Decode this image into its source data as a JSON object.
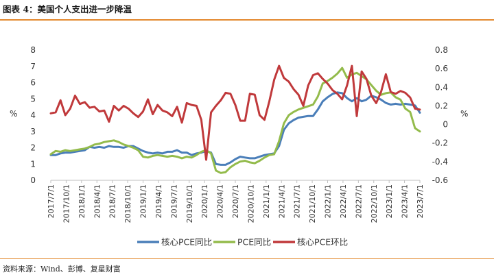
{
  "title": "图表 4：美国个人支出进一步降温",
  "source": "资料来源：Wind、彭博、复星财富",
  "colors": {
    "core_pce_yoy": "#4a7eb9",
    "pce_yoy": "#93bb4b",
    "core_pce_mom": "#c0393b",
    "rule": "#e3892f"
  },
  "chart_data": {
    "type": "line",
    "x_ticks": [
      "2017/7/1",
      "2017/10/1",
      "2018/1/1",
      "2018/4/1",
      "2018/7/1",
      "2018/10/1",
      "2019/1/1",
      "2019/4/1",
      "2019/7/1",
      "2019/10/1",
      "2020/1/1",
      "2020/4/1",
      "2020/7/1",
      "2020/10/1",
      "2021/1/1",
      "2021/4/1",
      "2021/7/1",
      "2021/10/1",
      "2022/1/1",
      "2022/4/1",
      "2022/7/1",
      "2022/10/1",
      "2023/1/1",
      "2023/4/1",
      "2023/7/1"
    ],
    "y_left": {
      "label": "%",
      "min": 0,
      "max": 8,
      "ticks": [
        "0",
        "1",
        "2",
        "3",
        "4",
        "5",
        "6",
        "7",
        "8"
      ]
    },
    "y_right": {
      "label": "%",
      "min": -0.6,
      "max": 0.8,
      "ticks": [
        "-0.6",
        "-0.4",
        "-0.2",
        "0",
        "0.2",
        "0.4",
        "0.6",
        "0.8"
      ]
    },
    "legend_position": "bottom",
    "series": [
      {
        "name": "核心PCE同比",
        "axis": "left",
        "color": "#4a7eb9",
        "values": [
          1.55,
          1.55,
          1.65,
          1.7,
          1.7,
          1.75,
          1.8,
          1.85,
          2.05,
          2.0,
          2.05,
          2.0,
          2.1,
          2.05,
          2.05,
          2.0,
          2.1,
          2.1,
          1.95,
          1.8,
          1.7,
          1.65,
          1.7,
          1.65,
          1.75,
          1.75,
          1.85,
          1.7,
          1.7,
          1.55,
          1.65,
          1.7,
          1.8,
          1.7,
          1.0,
          0.95,
          0.95,
          1.1,
          1.3,
          1.45,
          1.4,
          1.35,
          1.35,
          1.45,
          1.55,
          1.6,
          1.65,
          2.1,
          3.1,
          3.5,
          3.7,
          3.85,
          3.9,
          3.95,
          3.95,
          4.35,
          4.85,
          5.1,
          5.3,
          5.4,
          5.35,
          5.05,
          4.85,
          5.05,
          4.85,
          4.95,
          5.2,
          5.1,
          4.95,
          4.75,
          4.65,
          4.7,
          4.65,
          4.7,
          4.65,
          4.6,
          4.15
        ]
      },
      {
        "name": "PCE同比",
        "axis": "left",
        "color": "#93bb4b",
        "values": [
          1.6,
          1.8,
          1.75,
          1.85,
          1.8,
          1.85,
          1.9,
          1.95,
          2.05,
          2.2,
          2.25,
          2.35,
          2.4,
          2.45,
          2.35,
          2.2,
          2.1,
          2.0,
          1.85,
          1.45,
          1.4,
          1.5,
          1.55,
          1.5,
          1.45,
          1.5,
          1.45,
          1.35,
          1.45,
          1.4,
          1.55,
          1.75,
          1.85,
          1.65,
          0.6,
          0.45,
          0.5,
          0.8,
          1.0,
          1.15,
          1.2,
          1.1,
          1.05,
          1.2,
          1.4,
          1.55,
          1.6,
          2.4,
          3.5,
          4.0,
          4.2,
          4.35,
          4.45,
          4.55,
          4.65,
          5.15,
          5.95,
          6.1,
          6.3,
          6.55,
          6.9,
          6.3,
          6.5,
          6.6,
          6.4,
          6.2,
          5.85,
          5.5,
          5.25,
          5.35,
          5.4,
          5.1,
          4.95,
          4.4,
          4.2,
          3.2,
          3.0
        ]
      },
      {
        "name": "核心PCE环比",
        "axis": "right",
        "color": "#c0393b",
        "values": [
          0.12,
          0.13,
          0.26,
          0.1,
          0.17,
          0.31,
          0.22,
          0.24,
          0.18,
          0.19,
          0.14,
          0.15,
          0.03,
          0.2,
          0.15,
          0.2,
          0.17,
          0.12,
          0.08,
          0.14,
          0.27,
          0.11,
          0.21,
          0.15,
          0.13,
          0.09,
          0.19,
          0.02,
          0.23,
          0.21,
          0.2,
          0.05,
          -0.38,
          0.13,
          0.2,
          0.26,
          0.34,
          0.33,
          0.21,
          0.04,
          0.04,
          0.33,
          0.32,
          0.1,
          0.05,
          0.25,
          0.48,
          0.63,
          0.5,
          0.46,
          0.38,
          0.32,
          0.2,
          0.42,
          0.53,
          0.55,
          0.49,
          0.44,
          0.37,
          0.33,
          0.27,
          0.42,
          0.63,
          0.09,
          0.57,
          0.49,
          0.31,
          0.23,
          0.35,
          0.54,
          0.35,
          0.33,
          0.36,
          0.34,
          0.29,
          0.17,
          0.16
        ]
      }
    ]
  }
}
